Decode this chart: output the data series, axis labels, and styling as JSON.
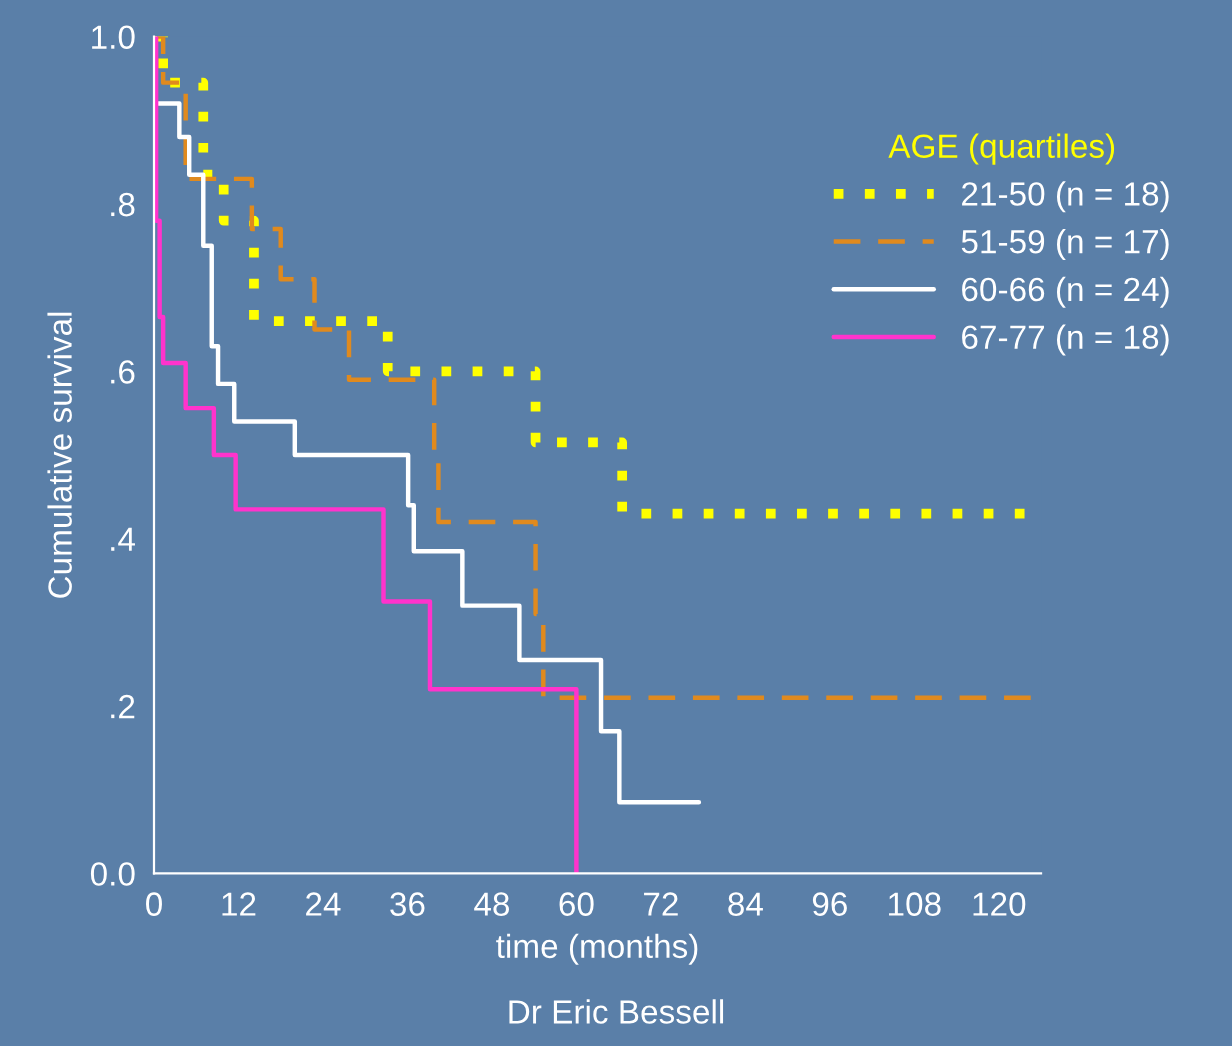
{
  "chart_data": {
    "type": "step",
    "xlabel": "time (months)",
    "ylabel": "Cumulative survival",
    "legend_title": "AGE (quartiles)",
    "legend": "top right",
    "grid": false,
    "xlim": [
      0,
      126
    ],
    "xticks": [
      0,
      12,
      24,
      36,
      48,
      60,
      72,
      84,
      96,
      108,
      120
    ],
    "ylim": [
      0,
      1.0
    ],
    "yticks": [
      {
        "value": 0,
        "label": "0.0"
      },
      {
        "value": 0.2,
        "label": ".2"
      },
      {
        "value": 0.4,
        "label": ".4"
      },
      {
        "value": 0.6,
        "label": ".6"
      },
      {
        "value": 0.8,
        "label": ".8"
      },
      {
        "value": 1.0,
        "label": "1.0"
      }
    ],
    "annotations": [
      "Dr Eric Bessell"
    ],
    "series": [
      {
        "name": "21-50 (n = 18)",
        "color": "#ffff00",
        "line_style": "dotted",
        "x": [
          0,
          1.3,
          7.0,
          9.9,
          14.2,
          33.2,
          54.2,
          66.5,
          126
        ],
        "values": [
          1.0,
          0.945,
          0.835,
          0.78,
          0.66,
          0.6,
          0.515,
          0.43,
          0.43
        ]
      },
      {
        "name": "51-59 (n = 17)",
        "color": "#e08a1e",
        "line_style": "dashed",
        "x": [
          0,
          1.3,
          4.5,
          13.9,
          18.0,
          22.8,
          27.7,
          39.8,
          40.4,
          54.2,
          55.3,
          124.8
        ],
        "values": [
          1.0,
          0.945,
          0.83,
          0.77,
          0.71,
          0.65,
          0.59,
          0.5,
          0.42,
          0.31,
          0.21,
          0.21
        ]
      },
      {
        "name": "60-66 (n = 24)",
        "color": "#ffffff",
        "line_style": "solid",
        "x": [
          0,
          0.1,
          3.6,
          5.0,
          7.0,
          8.2,
          9.1,
          11.4,
          20.0,
          36.1,
          36.9,
          43.8,
          51.9,
          63.5,
          66.1,
          77.4
        ],
        "values": [
          1.0,
          0.92,
          0.88,
          0.835,
          0.75,
          0.63,
          0.585,
          0.54,
          0.5,
          0.44,
          0.385,
          0.32,
          0.255,
          0.17,
          0.085,
          0.085
        ]
      },
      {
        "name": "67-77 (n = 18)",
        "color": "#ff33cc",
        "line_style": "solid",
        "x": [
          0,
          0.3,
          0.8,
          1.3,
          4.5,
          8.5,
          11.6,
          32.6,
          39.2,
          60.0
        ],
        "values": [
          1.0,
          0.78,
          0.665,
          0.61,
          0.556,
          0.5,
          0.435,
          0.325,
          0.22,
          0.0
        ]
      }
    ]
  }
}
